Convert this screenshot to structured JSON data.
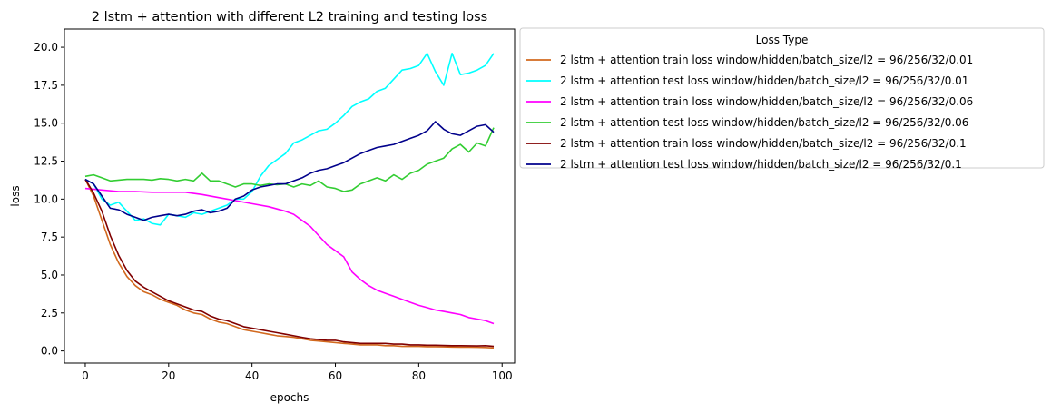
{
  "chart_data": {
    "type": "line",
    "title": "2 lstm + attention with different L2 training and testing loss",
    "xlabel": "epochs",
    "ylabel": "loss",
    "xlim": [
      -5,
      103
    ],
    "ylim": [
      -0.8,
      21.2
    ],
    "xticks": [
      0,
      20,
      40,
      60,
      80,
      100
    ],
    "yticks": [
      0.0,
      2.5,
      5.0,
      7.5,
      10.0,
      12.5,
      15.0,
      17.5,
      20.0
    ],
    "xtick_labels": [
      "0",
      "20",
      "40",
      "60",
      "80",
      "100"
    ],
    "ytick_labels": [
      "0.0",
      "2.5",
      "5.0",
      "7.5",
      "10.0",
      "12.5",
      "15.0",
      "17.5",
      "20.0"
    ],
    "grid": false,
    "legend": {
      "title": "Loss Type",
      "placement": "outside-right"
    },
    "series": [
      {
        "name": "2 lstm + attention train loss window/hidden/batch_size/l2 = 96/256/32/0.01",
        "color": "#d2691e",
        "points": [
          [
            0,
            11.3
          ],
          [
            2,
            10.2
          ],
          [
            4,
            8.6
          ],
          [
            6,
            7.0
          ],
          [
            8,
            5.8
          ],
          [
            10,
            4.9
          ],
          [
            12,
            4.3
          ],
          [
            14,
            3.9
          ],
          [
            16,
            3.7
          ],
          [
            18,
            3.4
          ],
          [
            20,
            3.2
          ],
          [
            22,
            3.0
          ],
          [
            24,
            2.7
          ],
          [
            26,
            2.5
          ],
          [
            28,
            2.4
          ],
          [
            30,
            2.1
          ],
          [
            32,
            1.9
          ],
          [
            34,
            1.8
          ],
          [
            36,
            1.6
          ],
          [
            38,
            1.4
          ],
          [
            40,
            1.3
          ],
          [
            42,
            1.2
          ],
          [
            44,
            1.1
          ],
          [
            46,
            1.0
          ],
          [
            48,
            0.95
          ],
          [
            50,
            0.9
          ],
          [
            52,
            0.8
          ],
          [
            54,
            0.7
          ],
          [
            56,
            0.65
          ],
          [
            58,
            0.6
          ],
          [
            60,
            0.55
          ],
          [
            62,
            0.5
          ],
          [
            64,
            0.45
          ],
          [
            66,
            0.4
          ],
          [
            68,
            0.4
          ],
          [
            70,
            0.4
          ],
          [
            72,
            0.35
          ],
          [
            74,
            0.35
          ],
          [
            76,
            0.3
          ],
          [
            78,
            0.3
          ],
          [
            80,
            0.3
          ],
          [
            82,
            0.28
          ],
          [
            84,
            0.28
          ],
          [
            86,
            0.27
          ],
          [
            88,
            0.26
          ],
          [
            90,
            0.25
          ],
          [
            92,
            0.25
          ],
          [
            94,
            0.24
          ],
          [
            96,
            0.23
          ],
          [
            98,
            0.2
          ]
        ]
      },
      {
        "name": "2 lstm + attention test loss window/hidden/batch_size/l2  = 96/256/32/0.01",
        "color": "#00ffff",
        "points": [
          [
            0,
            11.3
          ],
          [
            2,
            11.0
          ],
          [
            4,
            10.0
          ],
          [
            6,
            9.6
          ],
          [
            8,
            9.8
          ],
          [
            10,
            9.2
          ],
          [
            12,
            8.6
          ],
          [
            14,
            8.7
          ],
          [
            16,
            8.4
          ],
          [
            18,
            8.3
          ],
          [
            20,
            9.0
          ],
          [
            22,
            8.9
          ],
          [
            24,
            8.8
          ],
          [
            26,
            9.1
          ],
          [
            28,
            9.0
          ],
          [
            30,
            9.2
          ],
          [
            32,
            9.4
          ],
          [
            34,
            9.6
          ],
          [
            36,
            10.0
          ],
          [
            38,
            10.0
          ],
          [
            40,
            10.5
          ],
          [
            42,
            11.5
          ],
          [
            44,
            12.2
          ],
          [
            46,
            12.6
          ],
          [
            48,
            13.0
          ],
          [
            50,
            13.7
          ],
          [
            52,
            13.9
          ],
          [
            54,
            14.2
          ],
          [
            56,
            14.5
          ],
          [
            58,
            14.6
          ],
          [
            60,
            15.0
          ],
          [
            62,
            15.5
          ],
          [
            64,
            16.1
          ],
          [
            66,
            16.4
          ],
          [
            68,
            16.6
          ],
          [
            70,
            17.1
          ],
          [
            72,
            17.3
          ],
          [
            74,
            17.9
          ],
          [
            76,
            18.5
          ],
          [
            78,
            18.6
          ],
          [
            80,
            18.8
          ],
          [
            82,
            19.6
          ],
          [
            84,
            18.4
          ],
          [
            86,
            17.5
          ],
          [
            88,
            19.6
          ],
          [
            90,
            18.2
          ],
          [
            92,
            18.3
          ],
          [
            94,
            18.5
          ],
          [
            96,
            18.8
          ],
          [
            98,
            19.6
          ]
        ]
      },
      {
        "name": "2 lstm + attention train loss window/hidden/batch_size/l2 = 96/256/32/0.06",
        "color": "#ff00ff",
        "points": [
          [
            0,
            10.7
          ],
          [
            4,
            10.6
          ],
          [
            8,
            10.5
          ],
          [
            12,
            10.5
          ],
          [
            16,
            10.45
          ],
          [
            20,
            10.45
          ],
          [
            24,
            10.45
          ],
          [
            28,
            10.3
          ],
          [
            32,
            10.1
          ],
          [
            36,
            9.9
          ],
          [
            40,
            9.7
          ],
          [
            44,
            9.5
          ],
          [
            48,
            9.2
          ],
          [
            50,
            9.0
          ],
          [
            52,
            8.6
          ],
          [
            54,
            8.2
          ],
          [
            56,
            7.6
          ],
          [
            58,
            7.0
          ],
          [
            60,
            6.6
          ],
          [
            62,
            6.2
          ],
          [
            64,
            5.2
          ],
          [
            66,
            4.7
          ],
          [
            68,
            4.3
          ],
          [
            70,
            4.0
          ],
          [
            72,
            3.8
          ],
          [
            74,
            3.6
          ],
          [
            76,
            3.4
          ],
          [
            78,
            3.2
          ],
          [
            80,
            3.0
          ],
          [
            82,
            2.85
          ],
          [
            84,
            2.7
          ],
          [
            86,
            2.6
          ],
          [
            88,
            2.5
          ],
          [
            90,
            2.4
          ],
          [
            92,
            2.2
          ],
          [
            94,
            2.1
          ],
          [
            96,
            2.0
          ],
          [
            98,
            1.8
          ]
        ]
      },
      {
        "name": "2 lstm + attention test loss window/hidden/batch_size/l2  = 96/256/32/0.06",
        "color": "#32cd32",
        "points": [
          [
            0,
            11.5
          ],
          [
            2,
            11.6
          ],
          [
            4,
            11.4
          ],
          [
            6,
            11.2
          ],
          [
            8,
            11.25
          ],
          [
            10,
            11.3
          ],
          [
            12,
            11.3
          ],
          [
            14,
            11.3
          ],
          [
            16,
            11.25
          ],
          [
            18,
            11.35
          ],
          [
            20,
            11.3
          ],
          [
            22,
            11.2
          ],
          [
            24,
            11.3
          ],
          [
            26,
            11.2
          ],
          [
            28,
            11.7
          ],
          [
            30,
            11.2
          ],
          [
            32,
            11.2
          ],
          [
            34,
            11.0
          ],
          [
            36,
            10.8
          ],
          [
            38,
            11.0
          ],
          [
            40,
            11.0
          ],
          [
            42,
            10.9
          ],
          [
            44,
            11.0
          ],
          [
            46,
            10.95
          ],
          [
            48,
            11.0
          ],
          [
            50,
            10.8
          ],
          [
            52,
            11.0
          ],
          [
            54,
            10.9
          ],
          [
            56,
            11.2
          ],
          [
            58,
            10.8
          ],
          [
            60,
            10.7
          ],
          [
            62,
            10.5
          ],
          [
            64,
            10.6
          ],
          [
            66,
            11.0
          ],
          [
            68,
            11.2
          ],
          [
            70,
            11.4
          ],
          [
            72,
            11.2
          ],
          [
            74,
            11.6
          ],
          [
            76,
            11.3
          ],
          [
            78,
            11.7
          ],
          [
            80,
            11.9
          ],
          [
            82,
            12.3
          ],
          [
            84,
            12.5
          ],
          [
            86,
            12.7
          ],
          [
            88,
            13.3
          ],
          [
            90,
            13.6
          ],
          [
            92,
            13.1
          ],
          [
            94,
            13.7
          ],
          [
            96,
            13.5
          ],
          [
            98,
            14.7
          ]
        ]
      },
      {
        "name": "2 lstm + attention train loss window/hidden/batch_size/l2 = 96/256/32/0.1",
        "color": "#800000",
        "points": [
          [
            0,
            11.3
          ],
          [
            2,
            10.4
          ],
          [
            4,
            9.2
          ],
          [
            6,
            7.6
          ],
          [
            8,
            6.3
          ],
          [
            10,
            5.3
          ],
          [
            12,
            4.6
          ],
          [
            14,
            4.2
          ],
          [
            16,
            3.9
          ],
          [
            18,
            3.6
          ],
          [
            20,
            3.3
          ],
          [
            22,
            3.1
          ],
          [
            24,
            2.9
          ],
          [
            26,
            2.7
          ],
          [
            28,
            2.6
          ],
          [
            30,
            2.3
          ],
          [
            32,
            2.1
          ],
          [
            34,
            2.0
          ],
          [
            36,
            1.8
          ],
          [
            38,
            1.6
          ],
          [
            40,
            1.5
          ],
          [
            42,
            1.4
          ],
          [
            44,
            1.3
          ],
          [
            46,
            1.2
          ],
          [
            48,
            1.1
          ],
          [
            50,
            1.0
          ],
          [
            52,
            0.9
          ],
          [
            54,
            0.8
          ],
          [
            56,
            0.75
          ],
          [
            58,
            0.7
          ],
          [
            60,
            0.7
          ],
          [
            62,
            0.6
          ],
          [
            64,
            0.55
          ],
          [
            66,
            0.5
          ],
          [
            68,
            0.5
          ],
          [
            70,
            0.5
          ],
          [
            72,
            0.5
          ],
          [
            74,
            0.45
          ],
          [
            76,
            0.45
          ],
          [
            78,
            0.4
          ],
          [
            80,
            0.4
          ],
          [
            82,
            0.38
          ],
          [
            84,
            0.38
          ],
          [
            86,
            0.36
          ],
          [
            88,
            0.35
          ],
          [
            90,
            0.35
          ],
          [
            92,
            0.34
          ],
          [
            94,
            0.33
          ],
          [
            96,
            0.35
          ],
          [
            98,
            0.3
          ]
        ]
      },
      {
        "name": "2 lstm + attention test loss window/hidden/batch_size/l2  = 96/256/32/0.1",
        "color": "#00008b",
        "points": [
          [
            0,
            11.3
          ],
          [
            2,
            11.0
          ],
          [
            4,
            10.2
          ],
          [
            6,
            9.4
          ],
          [
            8,
            9.3
          ],
          [
            10,
            9.0
          ],
          [
            12,
            8.8
          ],
          [
            14,
            8.6
          ],
          [
            16,
            8.8
          ],
          [
            18,
            8.9
          ],
          [
            20,
            9.0
          ],
          [
            22,
            8.9
          ],
          [
            24,
            9.0
          ],
          [
            26,
            9.2
          ],
          [
            28,
            9.3
          ],
          [
            30,
            9.1
          ],
          [
            32,
            9.2
          ],
          [
            34,
            9.4
          ],
          [
            36,
            10.0
          ],
          [
            38,
            10.2
          ],
          [
            40,
            10.6
          ],
          [
            42,
            10.8
          ],
          [
            44,
            10.9
          ],
          [
            46,
            11.0
          ],
          [
            48,
            11.0
          ],
          [
            50,
            11.2
          ],
          [
            52,
            11.4
          ],
          [
            54,
            11.7
          ],
          [
            56,
            11.9
          ],
          [
            58,
            12.0
          ],
          [
            60,
            12.2
          ],
          [
            62,
            12.4
          ],
          [
            64,
            12.7
          ],
          [
            66,
            13.0
          ],
          [
            68,
            13.2
          ],
          [
            70,
            13.4
          ],
          [
            72,
            13.5
          ],
          [
            74,
            13.6
          ],
          [
            76,
            13.8
          ],
          [
            78,
            14.0
          ],
          [
            80,
            14.2
          ],
          [
            82,
            14.5
          ],
          [
            84,
            15.1
          ],
          [
            86,
            14.6
          ],
          [
            88,
            14.3
          ],
          [
            90,
            14.2
          ],
          [
            92,
            14.5
          ],
          [
            94,
            14.8
          ],
          [
            96,
            14.9
          ],
          [
            98,
            14.4
          ]
        ]
      }
    ]
  }
}
